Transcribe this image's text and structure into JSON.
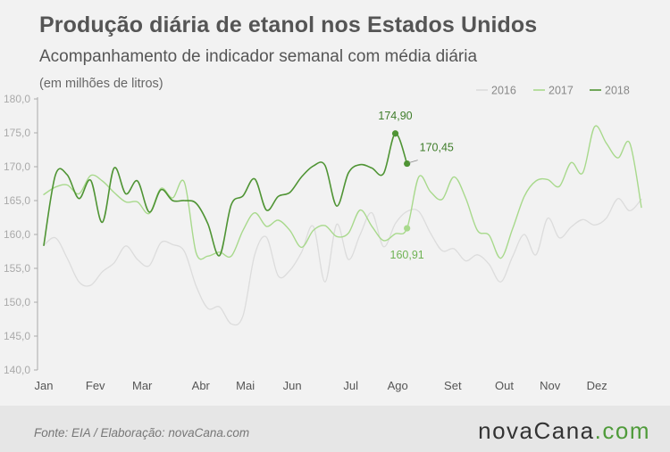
{
  "header": {
    "title": "Produção diária de etanol nos Estados Unidos",
    "subtitle": "Acompanhamento de indicador semanal com média diária",
    "units": "(em milhões de litros)"
  },
  "footer": {
    "source": "Fonte:  EIA / Elaboração:  novaCana.com",
    "logo_main": "novaCana",
    "logo_suffix": ".com"
  },
  "chart_data": {
    "type": "line",
    "x_label": "",
    "y_label": "",
    "x_ticks": [
      "Jan",
      "Fev",
      "Mar",
      "Abr",
      "Mai",
      "Jun",
      "Jul",
      "Ago",
      "Set",
      "Out",
      "Nov",
      "Dez"
    ],
    "y_ticks": [
      "140,0",
      "145,0",
      "150,0",
      "155,0",
      "160,0",
      "165,0",
      "170,0",
      "175,0",
      "180,0"
    ],
    "y_range": [
      140,
      180
    ],
    "x_unit": "week of year",
    "legend_position": "top-right",
    "grid": false,
    "colors": {
      "2016": "#dcdcdc",
      "2017": "#a8d98c",
      "2018": "#4f9434",
      "axis": "#aaaaaa",
      "ticks": "#555555",
      "legend_text": "#888888"
    },
    "series": [
      {
        "name": "2016",
        "x": [
          1,
          2,
          3,
          4,
          5,
          6,
          7,
          8,
          9,
          10,
          11,
          12,
          13,
          14,
          15,
          16,
          17,
          18,
          19,
          20,
          21,
          22,
          23,
          24,
          25,
          26,
          27,
          28,
          29,
          30,
          31,
          32,
          33,
          34,
          35,
          36,
          37,
          38,
          39,
          40,
          41,
          42,
          43,
          44,
          45,
          46,
          47,
          48,
          49,
          50,
          51,
          52
        ],
        "values": [
          158.4,
          159.5,
          156.5,
          153,
          152.5,
          154.5,
          155.8,
          158.3,
          156.3,
          155.4,
          158.8,
          158.5,
          157.5,
          152.4,
          149.1,
          149.3,
          146.8,
          148,
          157,
          159.6,
          153.9,
          154.7,
          157.4,
          161.2,
          153,
          161.5,
          156.3,
          160,
          163.2,
          158.2,
          161.6,
          163.4,
          163.4,
          160.2,
          157.6,
          157.9,
          156.1,
          157,
          155.6,
          153,
          156.7,
          160,
          157,
          162.4,
          159.5,
          161.1,
          162.2,
          161.4,
          162.4,
          165.3,
          163.5,
          165.2
        ]
      },
      {
        "name": "2017",
        "x": [
          1,
          2,
          3,
          4,
          5,
          6,
          7,
          8,
          9,
          10,
          11,
          12,
          13,
          14,
          15,
          16,
          17,
          18,
          19,
          20,
          21,
          22,
          23,
          24,
          25,
          26,
          27,
          28,
          29,
          30,
          31,
          32,
          33,
          34,
          35,
          36,
          37,
          38,
          39,
          40,
          41,
          42,
          43,
          44,
          45,
          46,
          47,
          48,
          49,
          50,
          51,
          52
        ],
        "values": [
          165.9,
          167,
          167.3,
          166,
          168.7,
          167.9,
          166.2,
          164.8,
          164.8,
          163.1,
          166.8,
          165.4,
          167.7,
          157.3,
          156.8,
          157.4,
          156.8,
          160.6,
          163.2,
          161.2,
          162.1,
          160.6,
          158.1,
          160.6,
          161.3,
          159.7,
          160.2,
          163.6,
          161.2,
          159.1,
          160.1,
          160.9,
          168.5,
          166.3,
          165.2,
          168.5,
          165.4,
          160.6,
          159.9,
          156.5,
          160.8,
          165.6,
          167.9,
          168.1,
          167.1,
          170.6,
          169.1,
          175.9,
          173.5,
          171.3,
          173.5,
          164
        ]
      },
      {
        "name": "2018",
        "x": [
          1,
          2,
          3,
          4,
          5,
          6,
          7,
          8,
          9,
          10,
          11,
          12,
          13,
          14,
          15,
          16,
          17,
          18,
          19,
          20,
          21,
          22,
          23,
          24,
          25,
          26,
          27,
          28,
          29,
          30,
          31,
          32
        ],
        "values": [
          158.4,
          168.8,
          168.8,
          165.3,
          168,
          161.8,
          169.8,
          166,
          167.9,
          163.3,
          166.6,
          165,
          165,
          164.6,
          161.6,
          156.9,
          164.4,
          165.7,
          168.2,
          163.6,
          165.6,
          166.2,
          168.5,
          170.1,
          170.2,
          164.2,
          169.1,
          170.3,
          169.8,
          169,
          174.9,
          170.45
        ]
      }
    ],
    "annotations": [
      {
        "series": "2018",
        "x": 31,
        "label": "174,90",
        "value": 174.9
      },
      {
        "series": "2018",
        "x": 32,
        "label": "170,45",
        "value": 170.45
      },
      {
        "series": "2017",
        "x": 32,
        "label": "160,91",
        "value": 160.91
      }
    ]
  }
}
